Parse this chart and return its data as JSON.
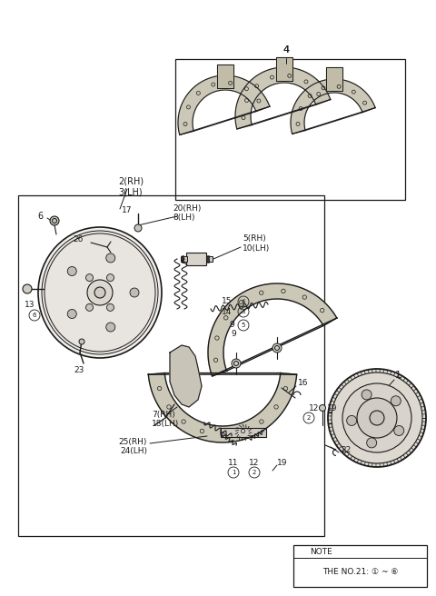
{
  "bg_color": "#ffffff",
  "line_color": "#1a1a1a",
  "fig_width": 4.8,
  "fig_height": 6.56,
  "dpi": 100,
  "note_text_1": "NOTE",
  "note_text_2": "THE NO.21: ① ~ ⑥",
  "label_4": "4",
  "label_1": "1",
  "label_6": "6",
  "label_17": "17",
  "label_20rh_8lh": "20(RH)\n8(LH)",
  "label_2rh_3lh": "2(RH)\n3(LH)",
  "label_26": "26",
  "label_13": "13",
  "label_23": "23",
  "label_5rh_10lh": "5(RH)\n10(LH)",
  "label_15": "15",
  "label_14": "14",
  "label_9": "9",
  "label_16": "16",
  "label_7rh_18lh": "7(RH)\n18(LH)",
  "label_25rh_24lh": "25(RH)\n24(LH)",
  "label_11": "11",
  "label_12": "12",
  "label_19": "19",
  "label_22": "22",
  "label_12b": "12",
  "label_19b": "19"
}
